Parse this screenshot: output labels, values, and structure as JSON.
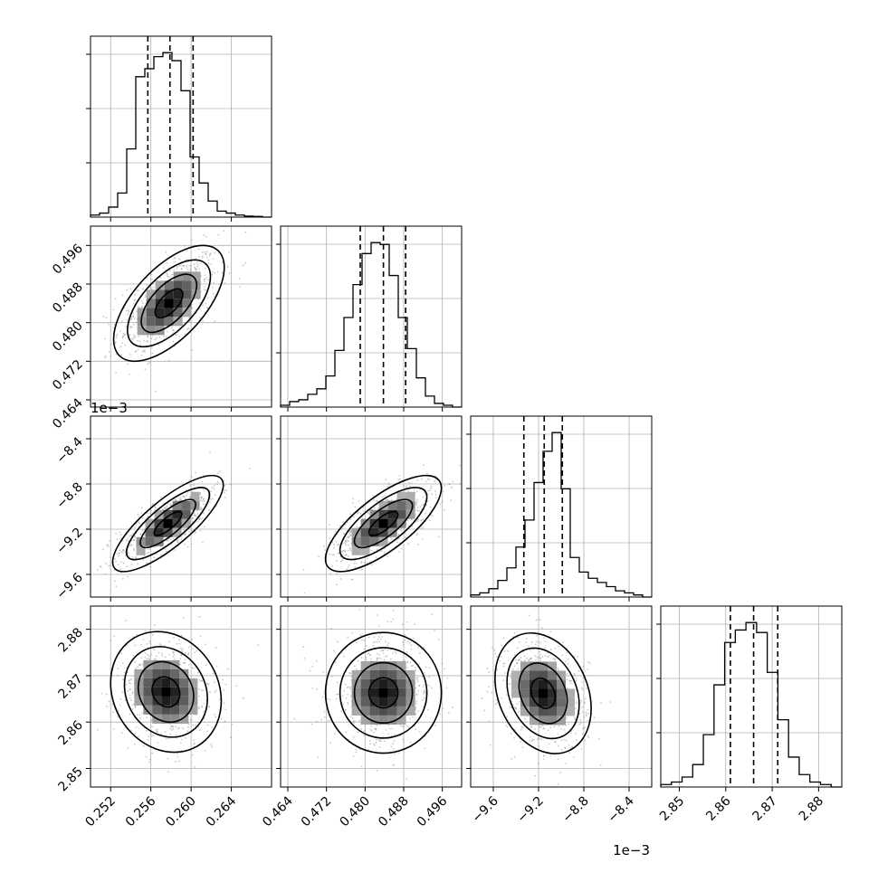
{
  "chart_data": {
    "type": "corner",
    "parameters": [
      {
        "range": [
          0.25,
          0.268
        ],
        "ticks": [
          0.252,
          0.256,
          0.26,
          0.264
        ],
        "tick_labels": [
          "0.252",
          "0.256",
          "0.260",
          "0.264"
        ],
        "quantiles": [
          0.2557,
          0.2579,
          0.2602
        ],
        "offset_label": "",
        "hist": [
          1,
          2,
          5,
          12,
          34,
          70,
          74,
          80,
          82,
          78,
          63,
          30,
          17,
          8,
          3,
          2,
          1,
          0.5,
          0.3,
          0
        ]
      },
      {
        "range": [
          0.4625,
          0.5
        ],
        "ticks": [
          0.464,
          0.472,
          0.48,
          0.488,
          0.496
        ],
        "tick_labels": [
          "0.464",
          "0.472",
          "0.480",
          "0.488",
          "0.496"
        ],
        "quantiles": [
          0.479,
          0.4838,
          0.4884
        ],
        "offset_label": "",
        "hist": [
          1,
          3,
          4,
          7,
          10,
          17,
          31,
          49,
          67,
          84,
          90,
          89,
          72,
          49,
          32,
          16,
          6,
          2,
          1,
          0
        ]
      },
      {
        "range": [
          -9.8,
          -8.2
        ],
        "ticks": [
          -9.6,
          -9.2,
          -8.8,
          -8.4
        ],
        "tick_labels": [
          "−9.6",
          "−9.2",
          "−8.8",
          "−8.4"
        ],
        "quantiles": [
          -9.33,
          -9.15,
          -8.99
        ],
        "offset_label": "1e−3",
        "hist": [
          1,
          2,
          4,
          8,
          14,
          24,
          37,
          55,
          70,
          79,
          52,
          19,
          12,
          9,
          7,
          5,
          3,
          2,
          1,
          0
        ]
      },
      {
        "range": [
          2.846,
          2.885
        ],
        "ticks": [
          2.85,
          2.86,
          2.87,
          2.88
        ],
        "tick_labels": [
          "2.85",
          "2.86",
          "2.87",
          "2.88"
        ],
        "quantiles": [
          2.861,
          2.866,
          2.8712
        ],
        "offset_label": "",
        "hist": [
          1,
          2,
          4,
          9,
          21,
          41,
          58,
          63,
          66,
          62,
          46,
          27,
          12,
          5,
          2,
          1,
          0
        ]
      }
    ],
    "ytick_labels": {
      "1": [
        "0.464",
        "0.472",
        "0.480",
        "0.488",
        "0.496"
      ],
      "2": [
        "−9.6",
        "−9.2",
        "−8.8",
        "−8.4"
      ],
      "3": [
        "2.85",
        "2.86",
        "2.87",
        "2.88"
      ]
    },
    "pairs": [
      {
        "row": 1,
        "col": 0,
        "center": [
          0.2578,
          0.484
        ],
        "sd": [
          0.0022,
          0.0048
        ],
        "rho": 0.62
      },
      {
        "row": 2,
        "col": 0,
        "center": [
          0.2577,
          -9.15
        ],
        "sd": [
          0.0022,
          0.17
        ],
        "rho": 0.8
      },
      {
        "row": 2,
        "col": 1,
        "center": [
          0.4838,
          -9.15
        ],
        "sd": [
          0.0048,
          0.17
        ],
        "rho": 0.74
      },
      {
        "row": 3,
        "col": 0,
        "center": [
          0.2575,
          2.8665
        ],
        "sd": [
          0.0022,
          0.0052
        ],
        "rho": -0.15
      },
      {
        "row": 3,
        "col": 1,
        "center": [
          0.4838,
          2.8663
        ],
        "sd": [
          0.0048,
          0.0052
        ],
        "rho": 0.0
      },
      {
        "row": 3,
        "col": 2,
        "center": [
          -9.16,
          2.8662
        ],
        "sd": [
          0.17,
          0.0052
        ],
        "rho": -0.25
      }
    ],
    "contour_levels_sigma": [
      0.5,
      1.0,
      1.5,
      2.0
    ],
    "grid": true,
    "colors": {
      "lines": "#000000",
      "points": "#888888",
      "grid": "#b0b0b0"
    }
  }
}
